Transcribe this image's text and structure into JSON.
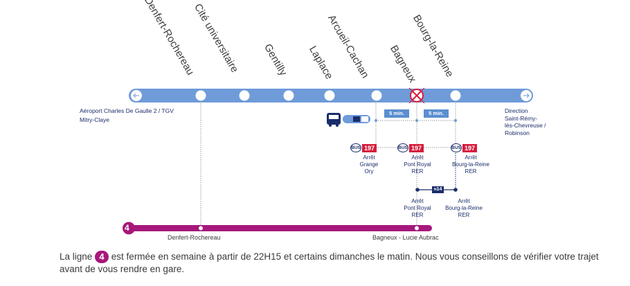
{
  "stations": [
    {
      "name": "Denfert-Rochereau"
    },
    {
      "name": "Cité universitaire"
    },
    {
      "name": "Gentilly"
    },
    {
      "name": "Laplace"
    },
    {
      "name": "Arcueil-Cachan"
    },
    {
      "name": "Bagneux"
    },
    {
      "name": "Bourg-la-Reine"
    }
  ],
  "left_direction": {
    "line1": "Aéroport Charles De Gaulle 2 / TGV",
    "line2": "Mitry-Claye"
  },
  "right_direction": {
    "line1": "Direction",
    "line2": "Saint-Rémy-",
    "line3": "lès-Chevreuse /",
    "line4": "Robinson"
  },
  "walk_times": [
    "5 min.",
    "5 min."
  ],
  "bus_line": "197",
  "bus_logo": "BUS",
  "bus_stops_197": [
    {
      "line1": "Arrêt",
      "line2": "Grange",
      "line3": "Ory"
    },
    {
      "line1": "Arrêt",
      "line2": "Pont Royal",
      "line3": "RER"
    },
    {
      "line1": "Arrêt",
      "line2": "Bourg-la-Reine",
      "line3": "RER"
    }
  ],
  "night_bus": "14",
  "night_bus_prefix": "N",
  "night_stops": [
    {
      "line1": "Arrêt",
      "line2": "Pont Royal",
      "line3": "RER"
    },
    {
      "line1": "Arrêt",
      "line2": "Bourg-la-Reine",
      "line3": "RER"
    }
  ],
  "metro_line": {
    "number": "4",
    "start_label": "Denfert-Rochereau",
    "end_label": "Bagneux - Lucie Aubrac",
    "color": "#a6187c"
  },
  "rer_color": "#6f9bd9",
  "footer": {
    "before": "La ligne ",
    "badge": "4",
    "after": " est fermée  en semaine à partir de 22H15 et certains dimanches le matin. Nous vous conseillons de vérifier votre trajet avant de vous rendre en gare."
  }
}
